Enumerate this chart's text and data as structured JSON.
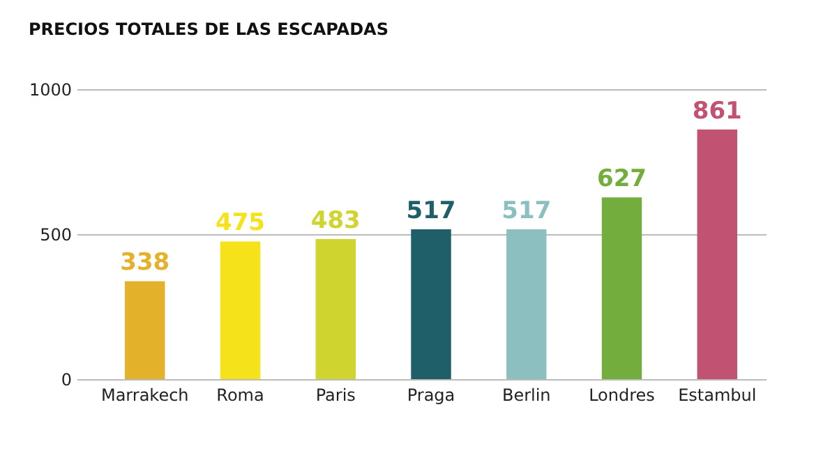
{
  "chart_data": {
    "type": "bar",
    "title": "PRECIOS TOTALES DE LAS ESCAPADAS",
    "categories": [
      "Marrakech",
      "Roma",
      "Paris",
      "Praga",
      "Berlin",
      "Londres",
      "Estambul"
    ],
    "values": [
      338,
      475,
      483,
      517,
      517,
      627,
      861
    ],
    "colors": [
      "#e3b12a",
      "#f5e21a",
      "#cfd52e",
      "#1e5f6a",
      "#8bbfc0",
      "#72ad3e",
      "#c25272"
    ],
    "ylim": [
      0,
      1000
    ],
    "yticks": [
      0,
      500,
      1000
    ],
    "grid": "y",
    "data_labels": true
  }
}
